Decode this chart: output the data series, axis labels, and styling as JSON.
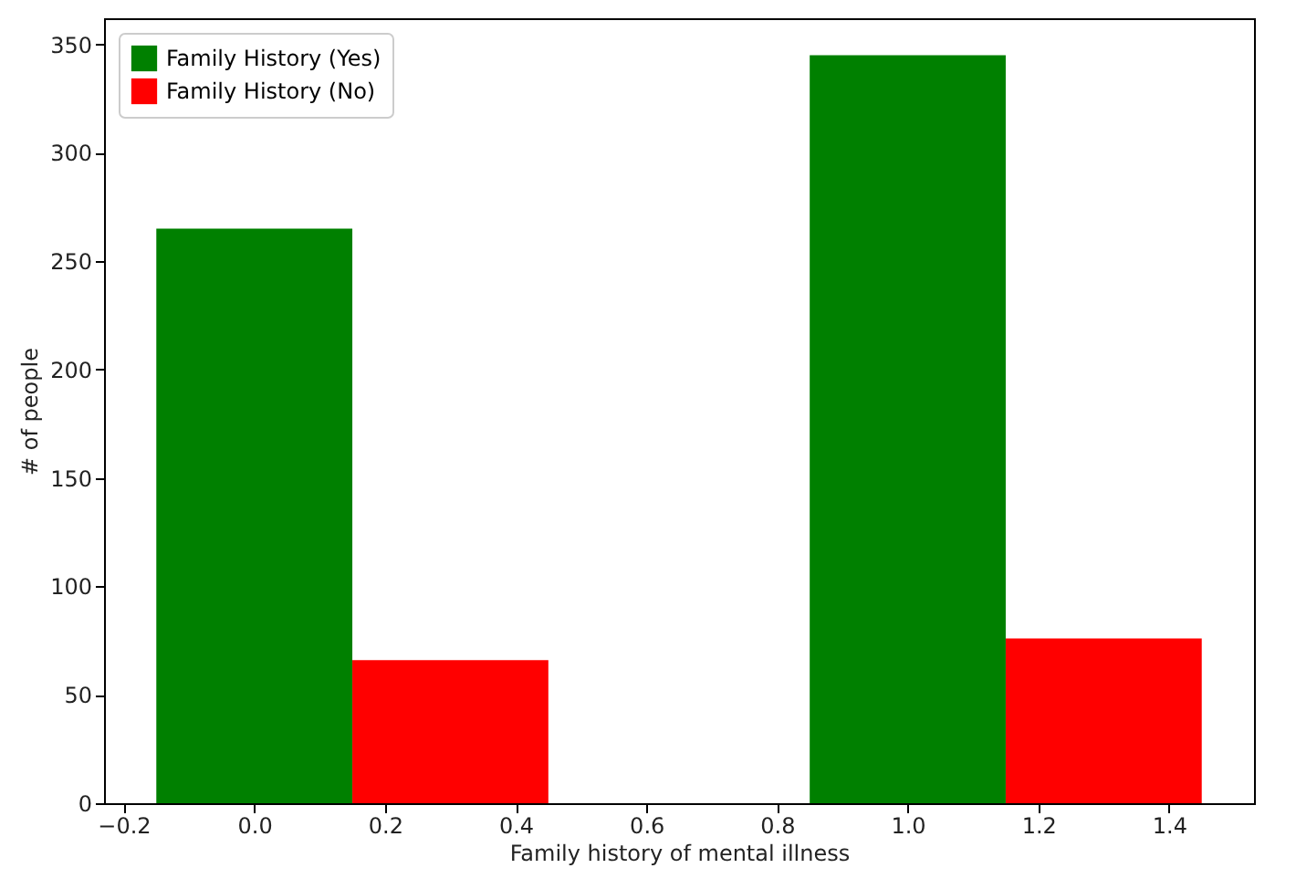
{
  "chart_data": {
    "type": "bar",
    "xlabel": "Family history of mental illness",
    "ylabel": "# of people",
    "xlim": [
      -0.23,
      1.53
    ],
    "xticks": [
      {
        "value": -0.2,
        "label": "−0.2"
      },
      {
        "value": 0,
        "label": "0.0"
      },
      {
        "value": 0.2,
        "label": "0.2"
      },
      {
        "value": 0.4,
        "label": "0.4"
      },
      {
        "value": 0.6,
        "label": "0.6"
      },
      {
        "value": 0.8,
        "label": "0.8"
      },
      {
        "value": 1,
        "label": "1.0"
      },
      {
        "value": 1.2,
        "label": "1.2"
      },
      {
        "value": 1.4,
        "label": "1.4"
      }
    ],
    "ylim": [
      0,
      362
    ],
    "yticks": [
      0,
      50,
      100,
      150,
      200,
      250,
      300,
      350
    ],
    "legend": "top left",
    "grid": false,
    "series": [
      {
        "name": "Family History (Yes)",
        "color": "#008000",
        "x": [
          0,
          1
        ],
        "values": [
          265,
          345
        ]
      },
      {
        "name": "Family History (No)",
        "color": "#ff0000",
        "x": [
          0.3,
          1.3
        ],
        "values": [
          66,
          76
        ]
      }
    ]
  }
}
